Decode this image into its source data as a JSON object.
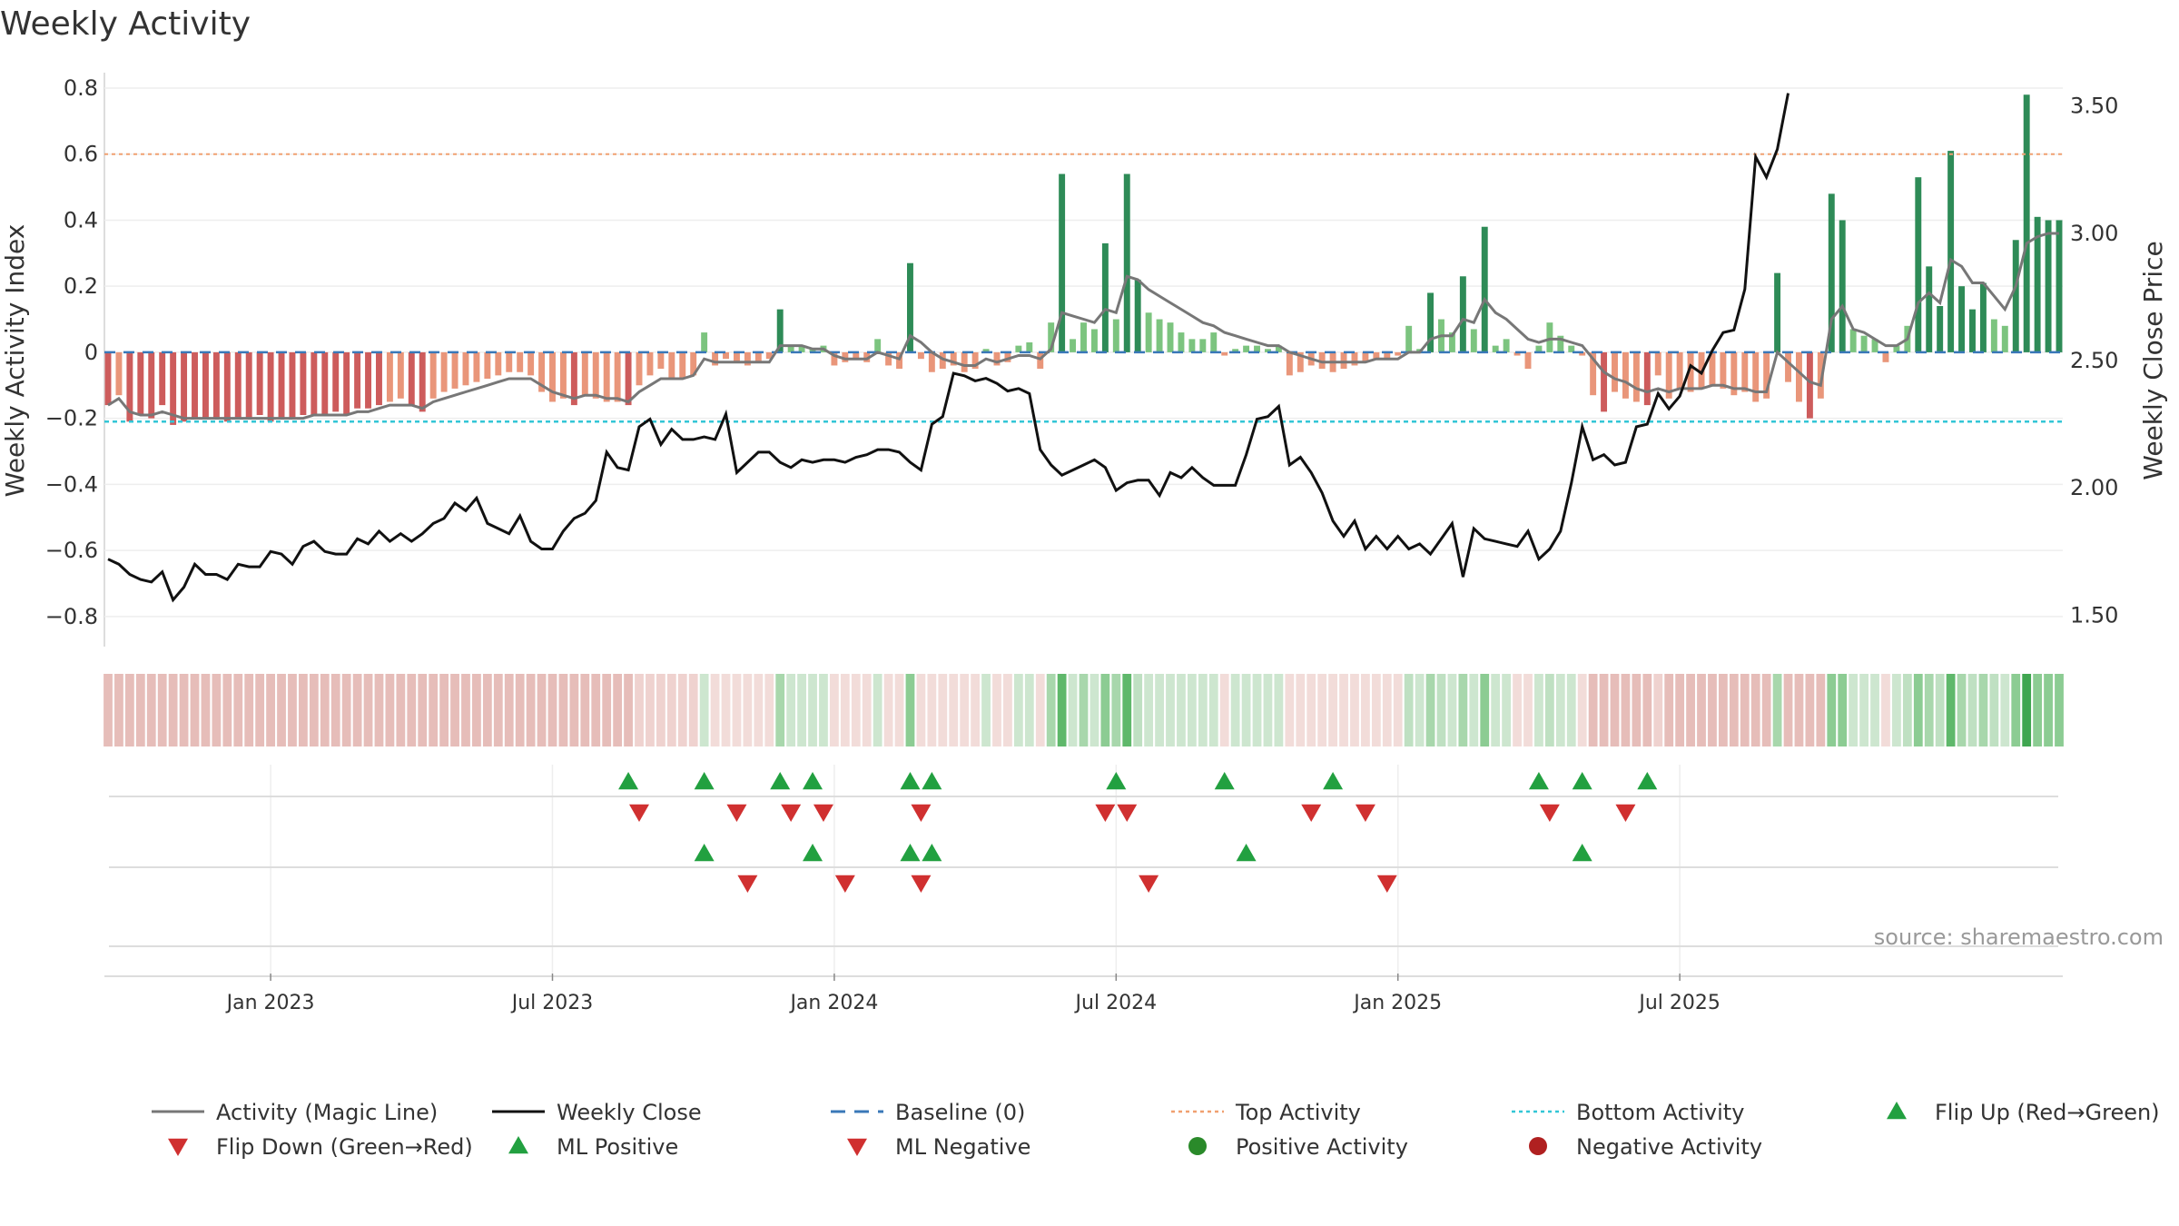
{
  "chart_data": {
    "type": "bar",
    "title": "Weekly Activity",
    "ylabel_left": "Weekly Activity Index",
    "ylabel_right": "Weekly Close Price",
    "source": "source: sharemaestro.com",
    "ylim_left": [
      -0.85,
      0.8
    ],
    "ylim_right": [
      1.43,
      3.57
    ],
    "left_ticks": [
      "0.8",
      "0.6",
      "0.4",
      "0.2",
      "0",
      "−0.2",
      "−0.4",
      "−0.6",
      "−0.8"
    ],
    "left_tick_values": [
      0.8,
      0.6,
      0.4,
      0.2,
      0,
      -0.2,
      -0.4,
      -0.6,
      -0.8
    ],
    "right_ticks": [
      "3.50",
      "3.00",
      "2.50",
      "2.00",
      "1.50"
    ],
    "right_tick_values": [
      3.5,
      3.0,
      2.5,
      2.0,
      1.5
    ],
    "date_ticks": [
      "Jan 2023",
      "Jul 2023",
      "Jan 2024",
      "Jul 2024",
      "Jan 2025",
      "Jul 2025"
    ],
    "date_tick_weeks": [
      15,
      41,
      67,
      93,
      119,
      145
    ],
    "top_activity": 0.6,
    "bottom_activity": -0.21,
    "baseline": 0,
    "activity": [
      -0.16,
      -0.13,
      -0.21,
      -0.19,
      -0.2,
      -0.16,
      -0.22,
      -0.21,
      -0.2,
      -0.2,
      -0.2,
      -0.21,
      -0.2,
      -0.2,
      -0.19,
      -0.21,
      -0.2,
      -0.2,
      -0.19,
      -0.19,
      -0.19,
      -0.18,
      -0.19,
      -0.17,
      -0.17,
      -0.16,
      -0.15,
      -0.14,
      -0.16,
      -0.18,
      -0.14,
      -0.12,
      -0.11,
      -0.1,
      -0.09,
      -0.08,
      -0.07,
      -0.06,
      -0.06,
      -0.07,
      -0.12,
      -0.15,
      -0.14,
      -0.16,
      -0.13,
      -0.14,
      -0.15,
      -0.15,
      -0.16,
      -0.1,
      -0.07,
      -0.05,
      -0.08,
      -0.08,
      -0.07,
      0.06,
      -0.04,
      -0.02,
      -0.03,
      -0.04,
      -0.03,
      -0.02,
      0.13,
      0.02,
      0.02,
      0.01,
      0.02,
      -0.04,
      -0.03,
      -0.02,
      -0.03,
      0.04,
      -0.04,
      -0.05,
      0.27,
      -0.02,
      -0.06,
      -0.05,
      -0.04,
      -0.06,
      -0.05,
      0.01,
      -0.04,
      -0.03,
      0.02,
      0.03,
      -0.05,
      0.09,
      0.54,
      0.04,
      0.09,
      0.07,
      0.33,
      0.1,
      0.54,
      0.22,
      0.12,
      0.1,
      0.09,
      0.06,
      0.04,
      0.04,
      0.06,
      -0.01,
      0.01,
      0.02,
      0.02,
      0.01,
      0.02,
      -0.07,
      -0.06,
      -0.04,
      -0.05,
      -0.06,
      -0.05,
      -0.04,
      -0.03,
      -0.02,
      -0.02,
      -0.01,
      0.08,
      0.01,
      0.18,
      0.1,
      0.06,
      0.23,
      0.07,
      0.38,
      0.02,
      0.04,
      -0.01,
      -0.05,
      0.02,
      0.09,
      0.05,
      0.02,
      -0.01,
      -0.13,
      -0.18,
      -0.12,
      -0.14,
      -0.15,
      -0.16,
      -0.07,
      -0.14,
      -0.11,
      -0.12,
      -0.11,
      -0.1,
      -0.11,
      -0.13,
      -0.12,
      -0.15,
      -0.14,
      0.24,
      -0.09,
      -0.15,
      -0.2,
      -0.14,
      0.48,
      0.4,
      0.07,
      0.05,
      0.04,
      -0.03,
      0.02,
      0.08,
      0.53,
      0.26,
      0.14,
      0.61,
      0.2,
      0.13,
      0.21,
      0.1,
      0.08,
      0.34,
      0.78,
      0.41,
      0.4,
      0.4
    ],
    "magic_line": [
      -0.16,
      -0.14,
      -0.18,
      -0.19,
      -0.19,
      -0.18,
      -0.19,
      -0.2,
      -0.2,
      -0.2,
      -0.2,
      -0.2,
      -0.2,
      -0.2,
      -0.2,
      -0.2,
      -0.2,
      -0.2,
      -0.2,
      -0.19,
      -0.19,
      -0.19,
      -0.19,
      -0.18,
      -0.18,
      -0.17,
      -0.16,
      -0.16,
      -0.16,
      -0.17,
      -0.15,
      -0.14,
      -0.13,
      -0.12,
      -0.11,
      -0.1,
      -0.09,
      -0.08,
      -0.08,
      -0.08,
      -0.1,
      -0.12,
      -0.13,
      -0.14,
      -0.13,
      -0.13,
      -0.14,
      -0.14,
      -0.15,
      -0.12,
      -0.1,
      -0.08,
      -0.08,
      -0.08,
      -0.07,
      -0.02,
      -0.03,
      -0.03,
      -0.03,
      -0.03,
      -0.03,
      -0.03,
      0.02,
      0.02,
      0.02,
      0.01,
      0.01,
      -0.01,
      -0.02,
      -0.02,
      -0.02,
      0.0,
      -0.01,
      -0.02,
      0.05,
      0.03,
      0.0,
      -0.02,
      -0.03,
      -0.04,
      -0.04,
      -0.02,
      -0.03,
      -0.02,
      -0.01,
      -0.01,
      -0.02,
      0.01,
      0.12,
      0.11,
      0.1,
      0.09,
      0.13,
      0.12,
      0.23,
      0.22,
      0.19,
      0.17,
      0.15,
      0.13,
      0.11,
      0.09,
      0.08,
      0.06,
      0.05,
      0.04,
      0.03,
      0.02,
      0.02,
      0.0,
      -0.01,
      -0.02,
      -0.03,
      -0.03,
      -0.03,
      -0.03,
      -0.03,
      -0.02,
      -0.02,
      -0.02,
      0.0,
      0.0,
      0.04,
      0.05,
      0.05,
      0.1,
      0.09,
      0.16,
      0.12,
      0.1,
      0.07,
      0.04,
      0.03,
      0.04,
      0.04,
      0.03,
      0.02,
      -0.02,
      -0.06,
      -0.08,
      -0.09,
      -0.11,
      -0.12,
      -0.11,
      -0.12,
      -0.11,
      -0.11,
      -0.11,
      -0.1,
      -0.1,
      -0.11,
      -0.11,
      -0.12,
      -0.12,
      0.0,
      -0.03,
      -0.06,
      -0.09,
      -0.1,
      0.1,
      0.14,
      0.07,
      0.06,
      0.04,
      0.02,
      0.02,
      0.04,
      0.15,
      0.18,
      0.15,
      0.28,
      0.26,
      0.21,
      0.21,
      0.17,
      0.13,
      0.2,
      0.33,
      0.35,
      0.36,
      0.36
    ],
    "close": [
      1.72,
      1.7,
      1.66,
      1.64,
      1.63,
      1.67,
      1.56,
      1.61,
      1.7,
      1.66,
      1.66,
      1.64,
      1.7,
      1.69,
      1.69,
      1.75,
      1.74,
      1.7,
      1.77,
      1.79,
      1.75,
      1.74,
      1.74,
      1.8,
      1.78,
      1.83,
      1.79,
      1.82,
      1.79,
      1.82,
      1.86,
      1.88,
      1.94,
      1.91,
      1.96,
      1.86,
      1.84,
      1.82,
      1.89,
      1.79,
      1.76,
      1.76,
      1.83,
      1.88,
      1.9,
      1.95,
      2.14,
      2.08,
      2.07,
      2.24,
      2.27,
      2.17,
      2.23,
      2.19,
      2.19,
      2.2,
      2.19,
      2.29,
      2.06,
      2.1,
      2.14,
      2.14,
      2.1,
      2.08,
      2.11,
      2.1,
      2.11,
      2.11,
      2.1,
      2.12,
      2.13,
      2.15,
      2.15,
      2.14,
      2.1,
      2.07,
      2.25,
      2.28,
      2.45,
      2.44,
      2.42,
      2.43,
      2.41,
      2.38,
      2.39,
      2.37,
      2.15,
      2.09,
      2.05,
      2.07,
      2.09,
      2.11,
      2.08,
      1.99,
      2.02,
      2.03,
      2.03,
      1.97,
      2.06,
      2.04,
      2.08,
      2.04,
      2.01,
      2.01,
      2.01,
      2.13,
      2.27,
      2.28,
      2.32,
      2.09,
      2.12,
      2.06,
      1.98,
      1.87,
      1.81,
      1.87,
      1.76,
      1.81,
      1.76,
      1.81,
      1.76,
      1.78,
      1.74,
      1.8,
      1.86,
      1.65,
      1.84,
      1.8,
      1.79,
      1.78,
      1.77,
      1.83,
      1.72,
      1.76,
      1.83,
      2.02,
      2.24,
      2.11,
      2.13,
      2.09,
      2.1,
      2.24,
      2.25,
      2.37,
      2.31,
      2.36,
      2.48,
      2.45,
      2.54,
      2.61,
      2.62,
      2.78,
      3.3,
      3.22,
      3.33,
      3.55
    ],
    "regime_colors": [
      "#e6bdb9",
      "#e6bdb9",
      "#e6bdb9",
      "#e6bdb9",
      "#e6bdb9",
      "#e6bdb9",
      "#e6bdb9",
      "#e6bdb9",
      "#e6bdb9",
      "#e6bdb9",
      "#e6bdb9",
      "#e6bdb9",
      "#e6bdb9",
      "#e6bdb9",
      "#e6bdb9",
      "#e6bdb9",
      "#e6bdb9",
      "#e6bdb9",
      "#e6bdb9",
      "#e6bdb9",
      "#e6bdb9",
      "#e6bdb9",
      "#e6bdb9",
      "#e6bdb9",
      "#e6bdb9",
      "#e6bdb9",
      "#e6bdb9",
      "#e6bdb9",
      "#e6bdb9",
      "#e6bdb9",
      "#e6bdb9",
      "#e6bdb9",
      "#e6bdb9",
      "#e6bdb9",
      "#e6bdb9",
      "#e6bdb9",
      "#e6bdb9",
      "#e6bdb9",
      "#e6bdb9",
      "#e6bdb9",
      "#e6bdb9",
      "#e6bdb9",
      "#e6bdb9",
      "#e6bdb9",
      "#e6bdb9",
      "#e6bdb9",
      "#e6bdb9",
      "#e6bdb9",
      "#e6bdb9",
      "#efd2cf",
      "#efd2cf",
      "#efd2cf",
      "#efd2cf",
      "#efd2cf",
      "#efd2cf",
      "#cde6cf",
      "#f2dcd9",
      "#f2dcd9",
      "#f2dcd9",
      "#f2dcd9",
      "#f2dcd9",
      "#f2dcd9",
      "#a8d7ac",
      "#cde6cf",
      "#cde6cf",
      "#cde6cf",
      "#cde6cf",
      "#f2dcd9",
      "#f2dcd9",
      "#f2dcd9",
      "#f2dcd9",
      "#cde6cf",
      "#f2dcd9",
      "#f2dcd9",
      "#8ccc93",
      "#f2dcd9",
      "#f2dcd9",
      "#f2dcd9",
      "#f2dcd9",
      "#f2dcd9",
      "#f2dcd9",
      "#cde6cf",
      "#f2dcd9",
      "#f2dcd9",
      "#cde6cf",
      "#cde6cf",
      "#f2dcd9",
      "#a8d7ac",
      "#5fb86b",
      "#cde6cf",
      "#a8d7ac",
      "#cde6cf",
      "#8ccc93",
      "#a8d7ac",
      "#5fb86b",
      "#bfe0c2",
      "#cde6cf",
      "#cde6cf",
      "#cde6cf",
      "#cde6cf",
      "#cde6cf",
      "#cde6cf",
      "#cde6cf",
      "#f2dcd9",
      "#cde6cf",
      "#cde6cf",
      "#cde6cf",
      "#cde6cf",
      "#cde6cf",
      "#f2dcd9",
      "#f2dcd9",
      "#f2dcd9",
      "#f2dcd9",
      "#f2dcd9",
      "#f2dcd9",
      "#f2dcd9",
      "#f2dcd9",
      "#f2dcd9",
      "#f2dcd9",
      "#f2dcd9",
      "#bfe0c2",
      "#cde6cf",
      "#a8d7ac",
      "#bfe0c2",
      "#cde6cf",
      "#a8d7ac",
      "#cde6cf",
      "#8ccc93",
      "#cde6cf",
      "#cde6cf",
      "#f2dcd9",
      "#f2dcd9",
      "#cde6cf",
      "#bfe0c2",
      "#cde6cf",
      "#cde6cf",
      "#f2dcd9",
      "#e6bdb9",
      "#e6bdb9",
      "#e6bdb9",
      "#e6bdb9",
      "#e6bdb9",
      "#e6bdb9",
      "#efd2cf",
      "#e6bdb9",
      "#e6bdb9",
      "#e6bdb9",
      "#e6bdb9",
      "#e6bdb9",
      "#e6bdb9",
      "#e6bdb9",
      "#e6bdb9",
      "#e6bdb9",
      "#e6bdb9",
      "#a8d7ac",
      "#e6bdb9",
      "#e6bdb9",
      "#e6bdb9",
      "#e6bdb9",
      "#8ccc93",
      "#8ccc93",
      "#cde6cf",
      "#cde6cf",
      "#cde6cf",
      "#f2dcd9",
      "#cde6cf",
      "#bfe0c2",
      "#8ccc93",
      "#a8d7ac",
      "#bfe0c2",
      "#5fb86b",
      "#a8d7ac",
      "#bfe0c2",
      "#a8d7ac",
      "#bfe0c2",
      "#cde6cf",
      "#8ccc93",
      "#3fa650",
      "#8ccc93",
      "#8ccc93",
      "#8ccc93"
    ],
    "flip_up_weeks": [
      48,
      55,
      62,
      65,
      74,
      76,
      93,
      103,
      113,
      132,
      136,
      142
    ],
    "flip_down_weeks": [
      49,
      58,
      63,
      66,
      75,
      92,
      94,
      111,
      116,
      133,
      140
    ],
    "ml_positive_weeks": [
      55,
      65,
      74,
      76,
      105,
      136
    ],
    "ml_negative_weeks": [
      59,
      68,
      75,
      96,
      118
    ],
    "legend": [
      {
        "label": "Activity (Magic Line)",
        "kind": "line",
        "color": "#777777"
      },
      {
        "label": "Weekly Close",
        "kind": "line",
        "color": "#111111"
      },
      {
        "label": "Baseline (0)",
        "kind": "dash",
        "color": "#3a78b8"
      },
      {
        "label": "Top Activity",
        "kind": "dot",
        "color": "#f0a070"
      },
      {
        "label": "Bottom Activity",
        "kind": "dot",
        "color": "#33c6d6"
      },
      {
        "label": "Flip Up (Red→Green)",
        "kind": "tri-up",
        "color": "#22a040"
      },
      {
        "label": "Flip Down (Green→Red)",
        "kind": "tri-down",
        "color": "#d03030"
      },
      {
        "label": "ML Positive",
        "kind": "tri-up",
        "color": "#22a040"
      },
      {
        "label": "ML Negative",
        "kind": "tri-down",
        "color": "#d03030"
      },
      {
        "label": "Positive Activity",
        "kind": "circle",
        "color": "#2a8a2a"
      },
      {
        "label": "Negative Activity",
        "kind": "circle",
        "color": "#b02020"
      }
    ],
    "colors": {
      "strong_pos": "#2e8b57",
      "mild_pos": "#7cc47f",
      "strong_neg": "#cd5c5c",
      "mild_neg": "#e9967a",
      "magic_line": "#777777",
      "close": "#111111",
      "baseline": "#3a78b8",
      "top": "#f0a070",
      "bottom": "#33c6d6",
      "up": "#22a040",
      "down": "#d03030"
    }
  }
}
